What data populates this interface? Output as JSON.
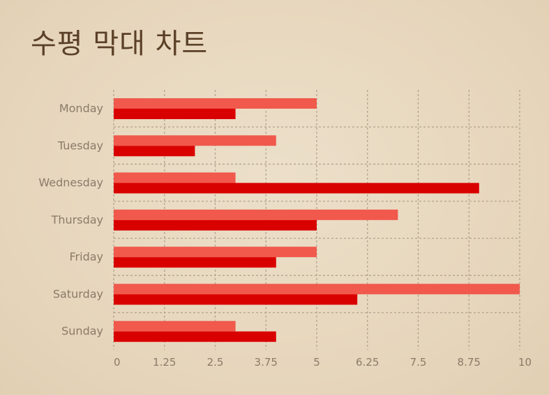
{
  "title": "수평 막대 차트",
  "chart_data": {
    "type": "bar",
    "orientation": "horizontal",
    "title": "수평 막대 차트",
    "categories": [
      "Monday",
      "Tuesday",
      "Wednesday",
      "Thursday",
      "Friday",
      "Saturday",
      "Sunday"
    ],
    "series": [
      {
        "color": "#f0594c",
        "values": [
          5,
          4,
          3,
          7,
          5,
          10,
          3
        ]
      },
      {
        "color": "#d90000",
        "values": [
          3,
          2,
          9,
          5,
          4,
          6,
          4
        ]
      }
    ],
    "xlim": [
      0,
      10
    ],
    "xticks": [
      "0",
      "1.25",
      "2.5",
      "3.75",
      "5",
      "6.25",
      "7.5",
      "8.75",
      "10"
    ],
    "grid": true,
    "legend": "none",
    "colors": {
      "grid": "#b3a38f",
      "label": "#8a7a68",
      "title": "#5a4026"
    }
  }
}
